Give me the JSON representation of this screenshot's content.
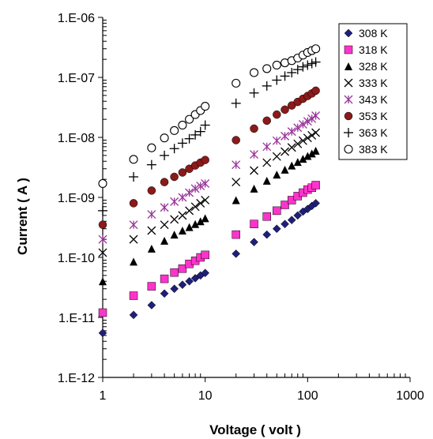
{
  "chart_data": {
    "type": "scatter",
    "title": "",
    "xlabel": "Voltage ( volt )",
    "ylabel": "Current ( A )",
    "xscale": "log",
    "yscale": "log",
    "xlim": [
      1,
      1000
    ],
    "ylim": [
      1e-12,
      1e-06
    ],
    "grid": false,
    "legend_position": "top-right",
    "x_tick_labels": [
      "1",
      "10",
      "100",
      "1000"
    ],
    "y_tick_labels": [
      "1.E-12",
      "1.E-11",
      "1.E-10",
      "1.E-09",
      "1.E-08",
      "1.E-07",
      "1.E-06"
    ],
    "x": [
      1,
      2,
      3,
      4,
      5,
      6,
      7,
      8,
      9,
      10,
      20,
      30,
      40,
      50,
      60,
      70,
      80,
      90,
      100,
      110,
      120
    ],
    "series": [
      {
        "name": "308 K",
        "marker": "diamond",
        "color": "#1f1f7a",
        "values": [
          5.5e-12,
          1.1e-11,
          1.6e-11,
          2.5e-11,
          3e-11,
          3.5e-11,
          4e-11,
          4.5e-11,
          5e-11,
          5.5e-11,
          1.15e-10,
          1.8e-10,
          2.4e-10,
          3e-10,
          3.6e-10,
          4.2e-10,
          5e-10,
          5.8e-10,
          6.4e-10,
          7.2e-10,
          8e-10
        ]
      },
      {
        "name": "318 K",
        "marker": "square",
        "color": "#ff33cc",
        "values": [
          1.2e-11,
          2.3e-11,
          3.3e-11,
          4.4e-11,
          5.6e-11,
          6.5e-11,
          7.8e-11,
          8.8e-11,
          1e-10,
          1.1e-10,
          2.4e-10,
          3.6e-10,
          4.8e-10,
          6e-10,
          7.5e-10,
          9e-10,
          1.05e-09,
          1.2e-09,
          1.35e-09,
          1.45e-09,
          1.6e-09
        ]
      },
      {
        "name": "328 K",
        "marker": "triangle",
        "color": "#000000",
        "values": [
          4e-11,
          8.5e-11,
          1.4e-10,
          1.9e-10,
          2.4e-10,
          2.8e-10,
          3.2e-10,
          3.6e-10,
          4e-10,
          4.5e-10,
          9e-10,
          1.4e-09,
          1.9e-09,
          2.4e-09,
          2.9e-09,
          3.4e-09,
          3.9e-09,
          4.4e-09,
          4.9e-09,
          5.4e-09,
          6e-09
        ]
      },
      {
        "name": "333 K",
        "marker": "x",
        "color": "#000000",
        "values": [
          1.2e-10,
          2e-10,
          2.8e-10,
          3.5e-10,
          4.3e-10,
          5e-10,
          6e-10,
          7e-10,
          8e-10,
          9e-10,
          1.8e-09,
          2.8e-09,
          3.8e-09,
          4.8e-09,
          5.8e-09,
          6.8e-09,
          7.8e-09,
          8.8e-09,
          9.8e-09,
          1.08e-08,
          1.2e-08
        ]
      },
      {
        "name": "343 K",
        "marker": "asterisk",
        "color": "#993399",
        "values": [
          2e-10,
          3.5e-10,
          5.2e-10,
          6.8e-10,
          8.5e-10,
          1e-09,
          1.2e-09,
          1.4e-09,
          1.55e-09,
          1.7e-09,
          3.5e-09,
          5.2e-09,
          7e-09,
          8.8e-09,
          1.05e-08,
          1.25e-08,
          1.45e-08,
          1.65e-08,
          1.85e-08,
          2.05e-08,
          2.3e-08
        ]
      },
      {
        "name": "353 K",
        "marker": "circle-filled",
        "color": "#8b1a1a",
        "values": [
          3.5e-10,
          8e-10,
          1.3e-09,
          1.8e-09,
          2.2e-09,
          2.6e-09,
          3e-09,
          3.4e-09,
          3.8e-09,
          4.2e-09,
          9e-09,
          1.4e-08,
          1.9e-08,
          2.4e-08,
          2.9e-08,
          3.4e-08,
          3.9e-08,
          4.4e-08,
          4.9e-08,
          5.4e-08,
          6e-08
        ]
      },
      {
        "name": "363 K",
        "marker": "plus",
        "color": "#000000",
        "values": [
          6e-10,
          2.2e-09,
          3.5e-09,
          5e-09,
          6.5e-09,
          8e-09,
          9.5e-09,
          1.1e-08,
          1.25e-08,
          1.6e-08,
          3.7e-08,
          5.5e-08,
          7.2e-08,
          9e-08,
          1.05e-07,
          1.2e-07,
          1.35e-07,
          1.5e-07,
          1.6e-07,
          1.7e-07,
          1.8e-07
        ]
      },
      {
        "name": "383 K",
        "marker": "circle-open",
        "color": "#000000",
        "values": [
          1.7e-09,
          4.3e-09,
          6.7e-09,
          9.8e-09,
          1.3e-08,
          1.6e-08,
          2e-08,
          2.4e-08,
          2.8e-08,
          3.3e-08,
          8e-08,
          1.2e-07,
          1.4e-07,
          1.6e-07,
          1.75e-07,
          1.9e-07,
          2.1e-07,
          2.35e-07,
          2.6e-07,
          2.8e-07,
          3e-07
        ]
      }
    ]
  }
}
